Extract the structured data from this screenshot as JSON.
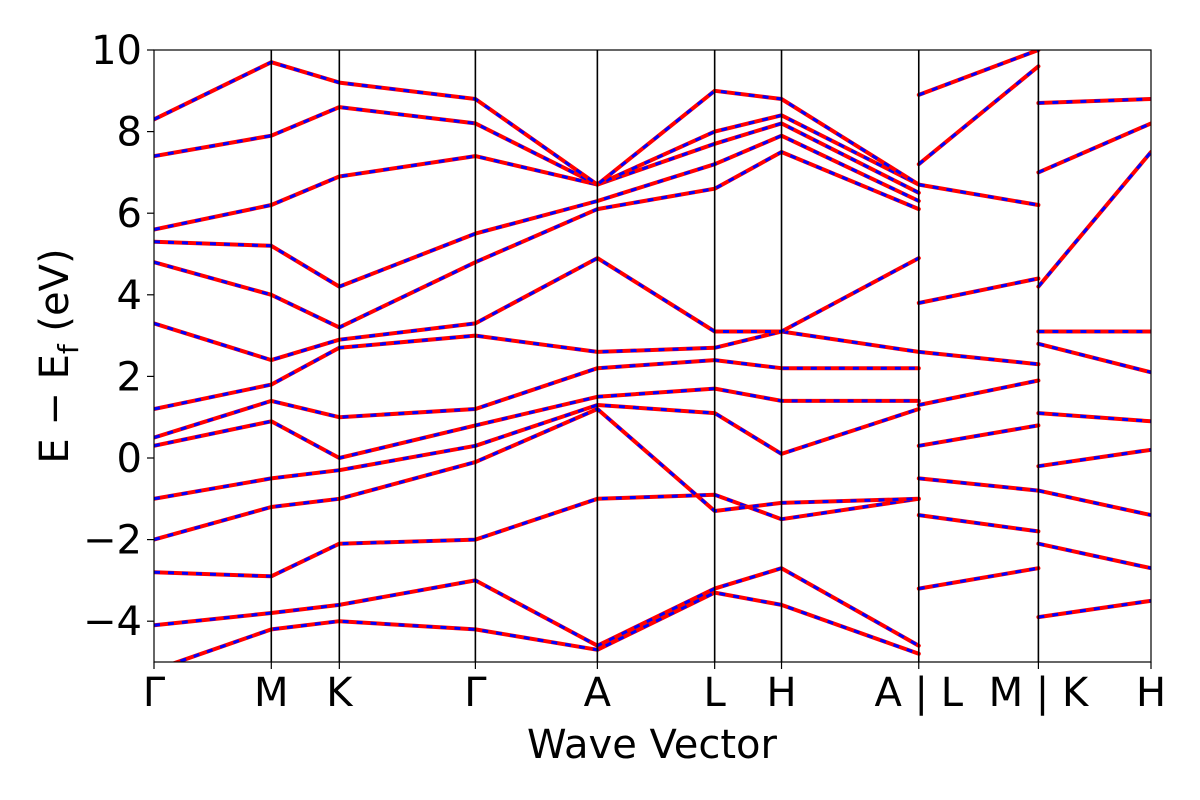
{
  "chart_data": {
    "type": "line",
    "title": "",
    "xlabel": "Wave Vector",
    "ylabel": {
      "main": "E − E",
      "sub": "f",
      "unit": " (eV)"
    },
    "ylim": [
      -5,
      10
    ],
    "yticks": [
      -4,
      -2,
      0,
      2,
      4,
      6,
      8,
      10
    ],
    "ytick_labels": [
      "−4",
      "−2",
      "0",
      "2",
      "4",
      "6",
      "8",
      "10"
    ],
    "x_range": [
      0,
      8.5
    ],
    "high_symmetry_points": [
      {
        "label": "Γ",
        "x": 0.0
      },
      {
        "label": "M",
        "x": 1.0
      },
      {
        "label": "K",
        "x": 1.58
      },
      {
        "label": "Γ",
        "x": 2.74
      },
      {
        "label": "A",
        "x": 3.78
      },
      {
        "label": "L",
        "x": 4.78
      },
      {
        "label": "H",
        "x": 5.35
      },
      {
        "label": "A | L",
        "x": 6.52
      },
      {
        "label": "M | K",
        "x": 7.54
      },
      {
        "label": "H",
        "x": 8.5
      }
    ],
    "grid": false,
    "legend": "none",
    "series": [
      {
        "color": "#ff0000",
        "style": "solid",
        "bands": [
          {
            "x": [
              0,
              1.0,
              1.58,
              2.74,
              3.78,
              4.78,
              5.35,
              6.52
            ],
            "y": [
              -5.2,
              -4.2,
              -4.0,
              -4.2,
              -4.7,
              -3.3,
              -3.6,
              -4.8
            ]
          },
          {
            "x": [
              0,
              1.0,
              1.58,
              2.74,
              3.78,
              4.78,
              5.35,
              6.52
            ],
            "y": [
              -4.1,
              -3.8,
              -3.6,
              -3.0,
              -4.6,
              -3.2,
              -2.7,
              -4.6
            ]
          },
          {
            "x": [
              0,
              1.0,
              1.58,
              2.74,
              3.78,
              4.78,
              5.35,
              6.52
            ],
            "y": [
              -2.8,
              -2.9,
              -2.1,
              -2.0,
              -1.0,
              -0.9,
              -1.5,
              -1.0
            ]
          },
          {
            "x": [
              0,
              1.0,
              1.58,
              2.74,
              3.78,
              4.78,
              5.35,
              6.52
            ],
            "y": [
              -2.0,
              -1.2,
              -1.0,
              -0.1,
              1.2,
              -1.3,
              -1.1,
              -1.0
            ]
          },
          {
            "x": [
              0,
              1.0,
              1.58,
              2.74,
              3.78,
              4.78,
              5.35,
              6.52
            ],
            "y": [
              -1.0,
              -0.5,
              -0.3,
              0.3,
              1.3,
              1.1,
              0.1,
              1.2
            ]
          },
          {
            "x": [
              0,
              1.0,
              1.58,
              2.74,
              3.78,
              4.78,
              5.35,
              6.52
            ],
            "y": [
              0.3,
              0.9,
              0.0,
              0.8,
              1.5,
              1.7,
              1.4,
              1.4
            ]
          },
          {
            "x": [
              0,
              1.0,
              1.58,
              2.74,
              3.78,
              4.78,
              5.35,
              6.52
            ],
            "y": [
              0.5,
              1.4,
              1.0,
              1.2,
              2.2,
              2.4,
              2.2,
              2.2
            ]
          },
          {
            "x": [
              0,
              1.0,
              1.58,
              2.74,
              3.78,
              4.78,
              5.35,
              6.52
            ],
            "y": [
              1.2,
              1.8,
              2.7,
              3.0,
              2.6,
              2.7,
              3.1,
              2.6
            ]
          },
          {
            "x": [
              0,
              1.0,
              1.58,
              2.74,
              3.78,
              4.78,
              5.35,
              6.52
            ],
            "y": [
              3.3,
              2.4,
              2.9,
              3.3,
              4.9,
              3.1,
              3.1,
              4.9
            ]
          },
          {
            "x": [
              0,
              1.0,
              1.58,
              2.74,
              3.78,
              4.78,
              5.35,
              6.52
            ],
            "y": [
              4.8,
              4.0,
              3.2,
              4.8,
              6.1,
              6.6,
              7.5,
              6.1
            ]
          },
          {
            "x": [
              0,
              1.0,
              1.58,
              2.74,
              3.78,
              4.78,
              5.35,
              6.52
            ],
            "y": [
              5.3,
              5.2,
              4.2,
              5.5,
              6.3,
              7.2,
              7.9,
              6.3
            ]
          },
          {
            "x": [
              0,
              1.0,
              1.58,
              2.74,
              3.78,
              4.78,
              5.35,
              6.52
            ],
            "y": [
              5.6,
              6.2,
              6.9,
              7.4,
              6.7,
              7.7,
              8.2,
              6.5
            ]
          },
          {
            "x": [
              0,
              1.0,
              1.58,
              2.74,
              3.78,
              4.78,
              5.35,
              6.52
            ],
            "y": [
              7.4,
              7.9,
              8.6,
              8.2,
              6.7,
              8.0,
              8.4,
              6.7
            ]
          },
          {
            "x": [
              0,
              1.0,
              1.58,
              2.74,
              3.78,
              4.78,
              5.35,
              6.52
            ],
            "y": [
              8.3,
              9.7,
              9.2,
              8.8,
              6.7,
              9.0,
              8.8,
              6.7
            ]
          },
          {
            "x": [
              6.52,
              7.54
            ],
            "y": [
              -3.2,
              -2.7
            ]
          },
          {
            "x": [
              6.52,
              7.54
            ],
            "y": [
              -1.4,
              -1.8
            ]
          },
          {
            "x": [
              6.52,
              7.54
            ],
            "y": [
              -0.5,
              -0.8
            ]
          },
          {
            "x": [
              6.52,
              7.54
            ],
            "y": [
              0.3,
              0.8
            ]
          },
          {
            "x": [
              6.52,
              7.54
            ],
            "y": [
              1.3,
              1.9
            ]
          },
          {
            "x": [
              6.52,
              7.54
            ],
            "y": [
              2.6,
              2.3
            ]
          },
          {
            "x": [
              6.52,
              7.54
            ],
            "y": [
              3.8,
              4.4
            ]
          },
          {
            "x": [
              6.52,
              7.54
            ],
            "y": [
              6.7,
              6.2
            ]
          },
          {
            "x": [
              6.52,
              7.54
            ],
            "y": [
              7.2,
              9.6
            ]
          },
          {
            "x": [
              6.52,
              7.54
            ],
            "y": [
              8.9,
              10.0
            ]
          },
          {
            "x": [
              7.54,
              8.5
            ],
            "y": [
              -3.9,
              -3.5
            ]
          },
          {
            "x": [
              7.54,
              8.5
            ],
            "y": [
              -2.1,
              -2.7
            ]
          },
          {
            "x": [
              7.54,
              8.5
            ],
            "y": [
              -0.8,
              -1.4
            ]
          },
          {
            "x": [
              7.54,
              8.5
            ],
            "y": [
              -0.2,
              0.2
            ]
          },
          {
            "x": [
              7.54,
              8.5
            ],
            "y": [
              1.1,
              0.9
            ]
          },
          {
            "x": [
              7.54,
              8.5
            ],
            "y": [
              2.8,
              2.1
            ]
          },
          {
            "x": [
              7.54,
              8.5
            ],
            "y": [
              3.1,
              3.1
            ]
          },
          {
            "x": [
              7.54,
              8.5
            ],
            "y": [
              4.2,
              7.5
            ]
          },
          {
            "x": [
              7.54,
              8.5
            ],
            "y": [
              7.0,
              8.2
            ]
          },
          {
            "x": [
              7.54,
              8.5
            ],
            "y": [
              8.7,
              8.8
            ]
          }
        ]
      },
      {
        "color": "#0000ff",
        "style": "dashed",
        "overlays": "identical to red bands"
      }
    ]
  }
}
